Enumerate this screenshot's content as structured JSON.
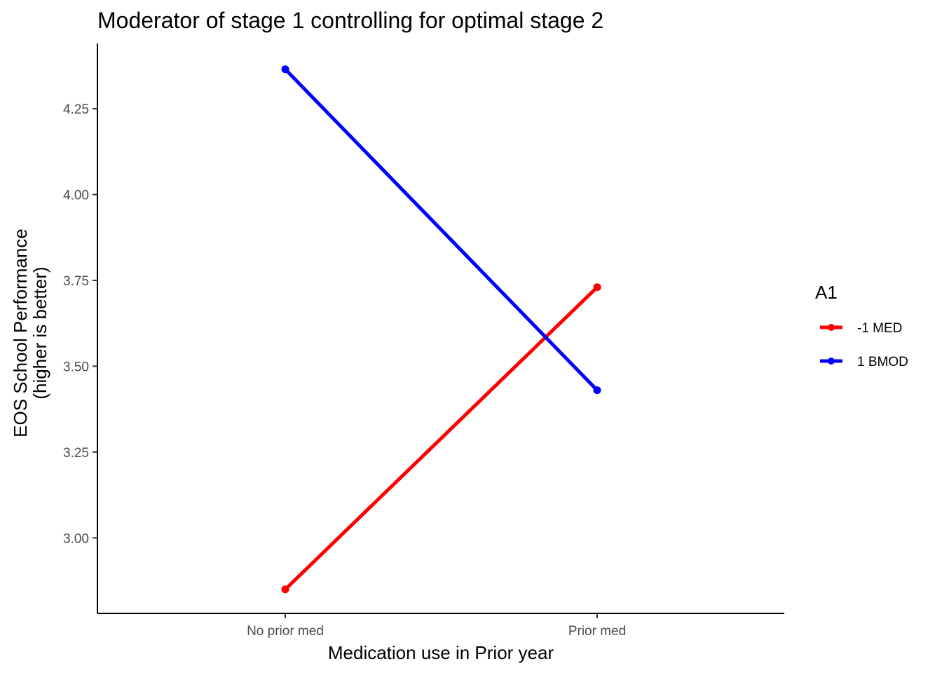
{
  "chart_data": {
    "type": "line",
    "title": "Moderator of stage 1 controlling for optimal stage 2",
    "xlabel": "Medication use in Prior year",
    "ylabel_lines": [
      "EOS School Performance",
      "(higher is better)"
    ],
    "categories": [
      "No prior med",
      "Prior med"
    ],
    "ylim": [
      2.78,
      4.44
    ],
    "yticks": [
      "3.00",
      "3.25",
      "3.50",
      "3.75",
      "4.00",
      "4.25"
    ],
    "grid": false,
    "legend": {
      "title": "A1",
      "position": "right"
    },
    "series": [
      {
        "name": "-1 MED",
        "color": "#ff0000",
        "values": [
          2.85,
          3.73
        ]
      },
      {
        "name": "1 BMOD",
        "color": "#0000ff",
        "values": [
          4.365,
          3.43
        ]
      }
    ]
  }
}
